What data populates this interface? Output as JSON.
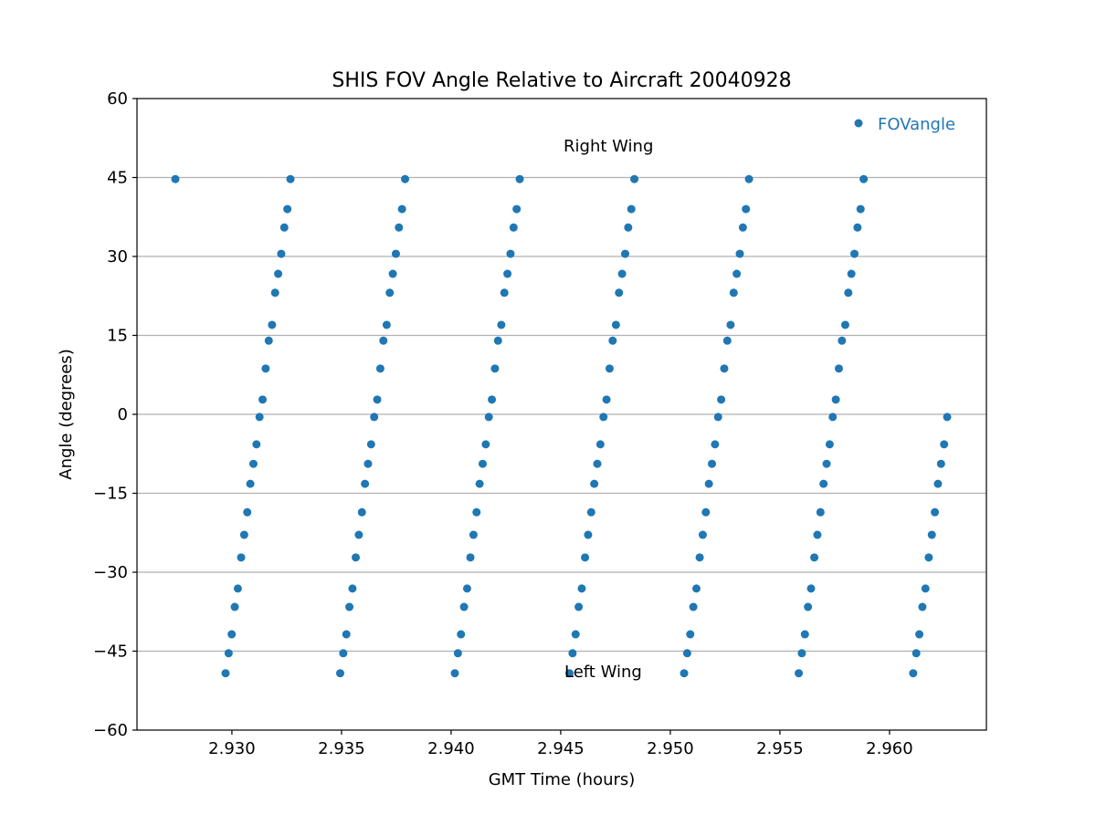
{
  "chart_data": {
    "type": "scatter",
    "title": "SHIS FOV Angle Relative to Aircraft 20040928",
    "xlabel": "GMT Time (hours)",
    "ylabel": "Angle (degrees)",
    "xlim": [
      2.92567,
      2.96442
    ],
    "ylim": [
      -60,
      60
    ],
    "xticks": [
      2.93,
      2.935,
      2.94,
      2.945,
      2.95,
      2.955,
      2.96
    ],
    "xtick_labels": [
      "2.930",
      "2.935",
      "2.940",
      "2.945",
      "2.950",
      "2.955",
      "2.960"
    ],
    "yticks": [
      -60,
      -45,
      -30,
      -15,
      0,
      15,
      30,
      45,
      60
    ],
    "ytick_labels": [
      "−60",
      "−45",
      "−30",
      "−15",
      "0",
      "15",
      "30",
      "45",
      "60"
    ],
    "grid": "horizontal",
    "legend": {
      "position": "top-right",
      "entries": [
        "FOVangle"
      ]
    },
    "annotations": [
      {
        "text": "Right Wing",
        "x": 2.94513,
        "y": 51
      },
      {
        "text": "Left Wing",
        "x": 2.94517,
        "y": -48.9
      }
    ],
    "series": [
      {
        "name": "FOVangle",
        "color": "#1f77b4",
        "x": [
          2.92742,
          2.92971,
          2.92985,
          2.92999,
          2.93013,
          2.93027,
          2.93042,
          2.93056,
          2.9307,
          2.93084,
          2.93098,
          2.93112,
          2.93126,
          2.9314,
          2.93154,
          2.93168,
          2.93183,
          2.93197,
          2.93211,
          2.93225,
          2.93239,
          2.93253,
          2.93267,
          2.93494,
          2.93508,
          2.93522,
          2.93536,
          2.9355,
          2.93565,
          2.93579,
          2.93593,
          2.93607,
          2.93621,
          2.93635,
          2.93649,
          2.93663,
          2.93677,
          2.93691,
          2.93706,
          2.9372,
          2.93734,
          2.93748,
          2.93762,
          2.93776,
          2.9379,
          2.94017,
          2.94031,
          2.94045,
          2.94059,
          2.94073,
          2.94088,
          2.94102,
          2.94116,
          2.9413,
          2.94144,
          2.94158,
          2.94172,
          2.94186,
          2.942,
          2.94214,
          2.94229,
          2.94243,
          2.94257,
          2.94271,
          2.94285,
          2.94299,
          2.94313,
          2.9454,
          2.94554,
          2.94568,
          2.94582,
          2.94596,
          2.94611,
          2.94625,
          2.94639,
          2.94653,
          2.94667,
          2.94681,
          2.94695,
          2.94709,
          2.94723,
          2.94737,
          2.94752,
          2.94766,
          2.9478,
          2.94794,
          2.94808,
          2.94822,
          2.94836,
          2.95063,
          2.95077,
          2.95091,
          2.95105,
          2.95119,
          2.95134,
          2.95148,
          2.95162,
          2.95176,
          2.9519,
          2.95204,
          2.95218,
          2.95232,
          2.95246,
          2.9526,
          2.95275,
          2.95289,
          2.95303,
          2.95317,
          2.95331,
          2.95345,
          2.95359,
          2.95586,
          2.956,
          2.95614,
          2.95628,
          2.95642,
          2.95657,
          2.95671,
          2.95685,
          2.95699,
          2.95713,
          2.95727,
          2.95741,
          2.95755,
          2.95769,
          2.95783,
          2.95798,
          2.95812,
          2.95826,
          2.9584,
          2.95854,
          2.95868,
          2.95882,
          2.96108,
          2.96122,
          2.96136,
          2.9615,
          2.96164,
          2.96179,
          2.96193,
          2.96207,
          2.96221,
          2.96235,
          2.96249,
          2.96263
        ],
        "y": [
          44.7,
          -49.2,
          -45.4,
          -41.8,
          -36.6,
          -33.1,
          -27.2,
          -22.9,
          -18.6,
          -13.2,
          -9.4,
          -5.7,
          -0.5,
          2.8,
          8.7,
          14.0,
          17.0,
          23.1,
          26.7,
          30.5,
          35.5,
          39.0,
          44.7,
          -49.2,
          -45.4,
          -41.8,
          -36.6,
          -33.1,
          -27.2,
          -22.9,
          -18.6,
          -13.2,
          -9.4,
          -5.7,
          -0.5,
          2.8,
          8.7,
          14.0,
          17.0,
          23.1,
          26.7,
          30.5,
          35.5,
          39.0,
          44.7,
          -49.2,
          -45.4,
          -41.8,
          -36.6,
          -33.1,
          -27.2,
          -22.9,
          -18.6,
          -13.2,
          -9.4,
          -5.7,
          -0.5,
          2.8,
          8.7,
          14.0,
          17.0,
          23.1,
          26.7,
          30.5,
          35.5,
          39.0,
          44.7,
          -49.2,
          -45.4,
          -41.8,
          -36.6,
          -33.1,
          -27.2,
          -22.9,
          -18.6,
          -13.2,
          -9.4,
          -5.7,
          -0.5,
          2.8,
          8.7,
          14.0,
          17.0,
          23.1,
          26.7,
          30.5,
          35.5,
          39.0,
          44.7,
          -49.2,
          -45.4,
          -41.8,
          -36.6,
          -33.1,
          -27.2,
          -22.9,
          -18.6,
          -13.2,
          -9.4,
          -5.7,
          -0.5,
          2.8,
          8.7,
          14.0,
          17.0,
          23.1,
          26.7,
          30.5,
          35.5,
          39.0,
          44.7,
          -49.2,
          -45.4,
          -41.8,
          -36.6,
          -33.1,
          -27.2,
          -22.9,
          -18.6,
          -13.2,
          -9.4,
          -5.7,
          -0.5,
          2.8,
          8.7,
          14.0,
          17.0,
          23.1,
          26.7,
          30.5,
          35.5,
          39.0,
          44.7,
          -49.2,
          -45.4,
          -41.8,
          -36.6,
          -33.1,
          -27.2,
          -22.9,
          -18.6,
          -13.2,
          -9.4,
          -5.7,
          -0.5
        ]
      }
    ]
  }
}
